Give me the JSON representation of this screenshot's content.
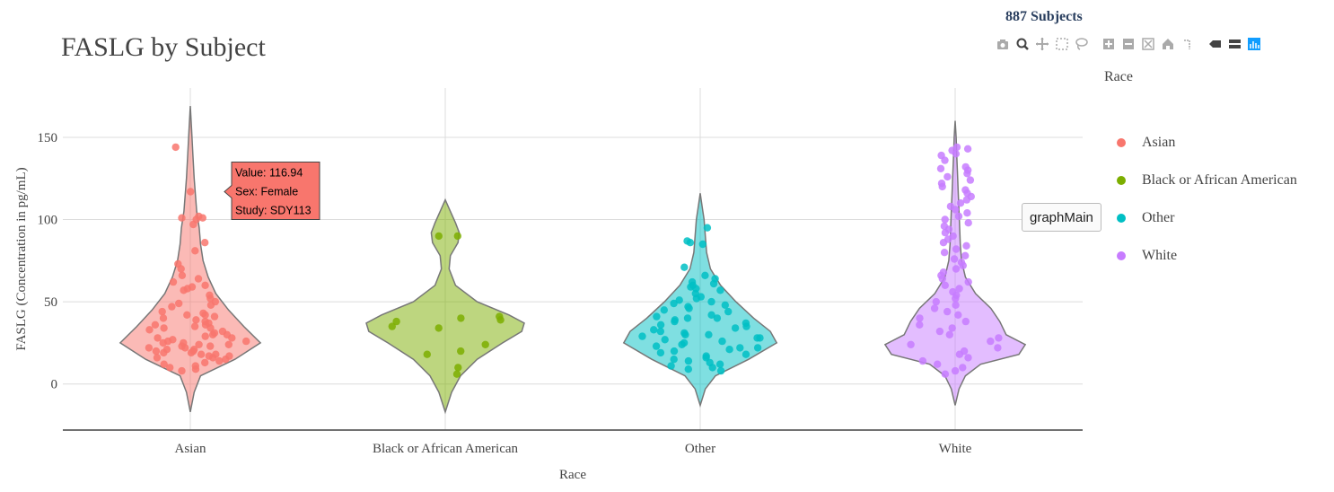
{
  "header": {
    "title": "FASLG by Subject",
    "subject_count": "887 Subjects"
  },
  "modebar": {
    "buttons": [
      {
        "name": "camera-icon"
      },
      {
        "name": "zoom-icon",
        "active": true
      },
      {
        "name": "pan-icon"
      },
      {
        "name": "box-select-icon"
      },
      {
        "name": "lasso-select-icon"
      },
      {
        "name": "zoom-in-icon"
      },
      {
        "name": "zoom-out-icon"
      },
      {
        "name": "autoscale-icon"
      },
      {
        "name": "reset-axes-icon"
      },
      {
        "name": "spike-lines-icon"
      },
      {
        "name": "hover-closest-icon"
      },
      {
        "name": "hover-compare-icon"
      },
      {
        "name": "plotly-logo-icon"
      }
    ]
  },
  "hover_label": "graphMain",
  "tooltip": {
    "lines": [
      "Value: 116.94",
      "Sex: Female",
      "Study: SDY113"
    ],
    "color": "#F8766D"
  },
  "chart_data": {
    "type": "violin",
    "title": "FASLG by Subject",
    "xlabel": "Race",
    "ylabel": "FASLG (Concentration in pg/mL)",
    "ylim": [
      -28,
      180
    ],
    "yticks": [
      0,
      50,
      100,
      150
    ],
    "categories": [
      "Asian",
      "Black or African American",
      "Other",
      "White"
    ],
    "legend": {
      "title": "Race",
      "placement": "right",
      "entries": [
        "Asian",
        "Black or African American",
        "Other",
        "White"
      ]
    },
    "colors": {
      "Asian": "#F8766D",
      "Black or African American": "#7CAE00",
      "Other": "#00BFC4",
      "White": "#C77CFF"
    },
    "series": [
      {
        "name": "Asian",
        "range": [
          -17,
          169
        ],
        "density": [
          [
            -17,
            0
          ],
          [
            -5,
            0.03
          ],
          [
            5,
            0.08
          ],
          [
            15,
            0.35
          ],
          [
            25,
            0.55
          ],
          [
            35,
            0.42
          ],
          [
            45,
            0.3
          ],
          [
            55,
            0.2
          ],
          [
            65,
            0.14
          ],
          [
            75,
            0.1
          ],
          [
            85,
            0.08
          ],
          [
            95,
            0.07
          ],
          [
            105,
            0.05
          ],
          [
            115,
            0.04
          ],
          [
            125,
            0.03
          ],
          [
            140,
            0.02
          ],
          [
            155,
            0.01
          ],
          [
            169,
            0
          ]
        ],
        "points": [
          144,
          116.94,
          102,
          100,
          101,
          97,
          101,
          81,
          86,
          73,
          70,
          66,
          64,
          62,
          60,
          59,
          58,
          57,
          54,
          52,
          50,
          49,
          48,
          47,
          44,
          43,
          42,
          42,
          41,
          40,
          39,
          38,
          37,
          36,
          36,
          35,
          34,
          34,
          33,
          32,
          31,
          30,
          30,
          29,
          28,
          28,
          27,
          26,
          26,
          25,
          25,
          24,
          24,
          23,
          23,
          22,
          22,
          21,
          21,
          20,
          20,
          19,
          19,
          18,
          18,
          17,
          17,
          16,
          16,
          15,
          14,
          13,
          12,
          11,
          10,
          9,
          8
        ]
      },
      {
        "name": "Black or African American",
        "range": [
          -17,
          112
        ],
        "density": [
          [
            -17,
            0
          ],
          [
            -5,
            0.05
          ],
          [
            5,
            0.12
          ],
          [
            15,
            0.25
          ],
          [
            25,
            0.45
          ],
          [
            32,
            0.6
          ],
          [
            37,
            0.62
          ],
          [
            42,
            0.5
          ],
          [
            50,
            0.25
          ],
          [
            60,
            0.08
          ],
          [
            70,
            0.03
          ],
          [
            78,
            0.04
          ],
          [
            86,
            0.1
          ],
          [
            92,
            0.11
          ],
          [
            98,
            0.08
          ],
          [
            105,
            0.04
          ],
          [
            112,
            0
          ]
        ],
        "points": [
          90,
          90,
          41,
          40,
          39,
          38,
          35,
          34,
          24,
          20,
          18,
          10,
          6
        ]
      },
      {
        "name": "Other",
        "range": [
          -13,
          116
        ],
        "density": [
          [
            -13,
            0
          ],
          [
            -3,
            0.04
          ],
          [
            5,
            0.12
          ],
          [
            15,
            0.38
          ],
          [
            25,
            0.6
          ],
          [
            32,
            0.55
          ],
          [
            40,
            0.42
          ],
          [
            50,
            0.28
          ],
          [
            60,
            0.16
          ],
          [
            70,
            0.08
          ],
          [
            80,
            0.05
          ],
          [
            90,
            0.04
          ],
          [
            100,
            0.03
          ],
          [
            108,
            0.015
          ],
          [
            116,
            0
          ]
        ],
        "points": [
          95,
          87,
          86,
          85,
          71,
          66,
          64,
          62,
          61,
          60,
          59,
          58,
          57,
          55,
          53,
          52,
          51,
          50,
          49,
          48,
          47,
          46,
          45,
          44,
          42,
          41,
          40,
          40,
          39,
          38,
          37,
          36,
          35,
          34,
          33,
          32,
          31,
          30,
          30,
          29,
          28,
          28,
          27,
          26,
          25,
          24,
          23,
          22,
          22,
          21,
          20,
          19,
          18,
          17,
          16,
          15,
          14,
          13,
          12,
          11,
          10,
          9,
          8
        ]
      },
      {
        "name": "White",
        "range": [
          -13,
          160
        ],
        "density": [
          [
            -13,
            0
          ],
          [
            -3,
            0.03
          ],
          [
            5,
            0.08
          ],
          [
            12,
            0.2
          ],
          [
            18,
            0.5
          ],
          [
            24,
            0.55
          ],
          [
            30,
            0.4
          ],
          [
            38,
            0.35
          ],
          [
            46,
            0.28
          ],
          [
            55,
            0.16
          ],
          [
            65,
            0.08
          ],
          [
            75,
            0.05
          ],
          [
            85,
            0.04
          ],
          [
            95,
            0.035
          ],
          [
            105,
            0.03
          ],
          [
            115,
            0.025
          ],
          [
            125,
            0.02
          ],
          [
            140,
            0.012
          ],
          [
            150,
            0.008
          ],
          [
            160,
            0
          ]
        ],
        "points": [
          144,
          143,
          142,
          140,
          139,
          136,
          132,
          131,
          130,
          128,
          126,
          124,
          122,
          120,
          118,
          116,
          114,
          112,
          110,
          108,
          106,
          104,
          102,
          100,
          98,
          96,
          94,
          92,
          90,
          88,
          86,
          84,
          82,
          80,
          78,
          76,
          74,
          72,
          70,
          68,
          66,
          64,
          62,
          60,
          58,
          56,
          54,
          52,
          50,
          48,
          46,
          44,
          42,
          40,
          38,
          36,
          34,
          32,
          30,
          28,
          26,
          24,
          22,
          20,
          18,
          16,
          14,
          12,
          10,
          8,
          6
        ]
      }
    ]
  }
}
